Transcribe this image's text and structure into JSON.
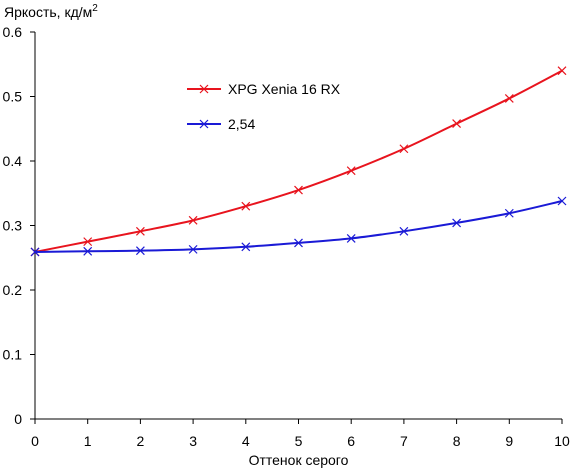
{
  "chart_data": {
    "type": "line",
    "ylabel": "Яркость, кд/м",
    "ylabel_sup": "2",
    "xlabel": "Оттенок серого",
    "xlim": [
      0,
      10
    ],
    "ylim": [
      0,
      0.6
    ],
    "x_ticks": [
      "0",
      "1",
      "2",
      "3",
      "4",
      "5",
      "6",
      "7",
      "8",
      "9",
      "10"
    ],
    "y_ticks": [
      "0",
      "0.1",
      "0.2",
      "0.3",
      "0.4",
      "0.5",
      "0.6"
    ],
    "grid": false,
    "legend_position": "inside top-center",
    "x": [
      0,
      1,
      2,
      3,
      4,
      5,
      6,
      7,
      8,
      9,
      10
    ],
    "series": [
      {
        "name": "XPG Xenia 16 RX",
        "color": "#e8141e",
        "marker": "x",
        "values": [
          0.259,
          0.275,
          0.291,
          0.308,
          0.33,
          0.355,
          0.385,
          0.419,
          0.458,
          0.497,
          0.54
        ]
      },
      {
        "name": "2,54",
        "color": "#1a1ad6",
        "marker": "x",
        "values": [
          0.259,
          0.26,
          0.261,
          0.263,
          0.267,
          0.273,
          0.28,
          0.291,
          0.304,
          0.319,
          0.338
        ]
      }
    ]
  }
}
